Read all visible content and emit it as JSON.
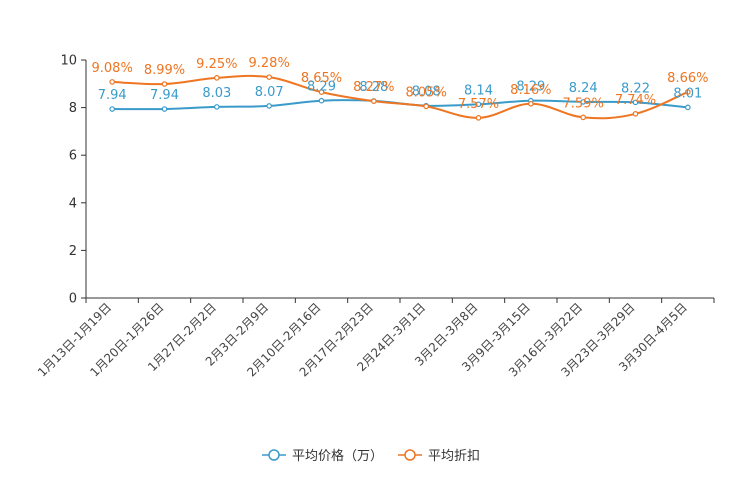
{
  "chart_data": {
    "type": "line",
    "categories": [
      "1月13日-1月19日",
      "1月20日-1月26日",
      "1月27日-2月2日",
      "2月3日-2月9日",
      "2月10日-2月16日",
      "2月17日-2月23日",
      "2月24日-3月1日",
      "3月2日-3月8日",
      "3月9日-3月15日",
      "3月16日-3月22日",
      "3月23日-3月29日",
      "3月30日-4月5日"
    ],
    "ylim": [
      0,
      10
    ],
    "yticks": [
      0,
      2,
      4,
      6,
      8,
      10
    ],
    "series": [
      {
        "name": "平均价格（万）",
        "color": "#3a9bcb",
        "values": [
          7.94,
          7.94,
          8.03,
          8.07,
          8.29,
          8.28,
          8.08,
          8.14,
          8.29,
          8.24,
          8.22,
          8.01
        ],
        "labels": [
          "7.94",
          "7.94",
          "8.03",
          "8.07",
          "8.29",
          "8.28",
          "8.08",
          "8.14",
          "8.29",
          "8.24",
          "8.22",
          "8.01"
        ]
      },
      {
        "name": "平均折扣",
        "color": "#ee7522",
        "values": [
          9.08,
          8.99,
          9.25,
          9.28,
          8.65,
          8.27,
          8.05,
          7.57,
          8.16,
          7.59,
          7.74,
          8.66
        ],
        "labels": [
          "9.08%",
          "8.99%",
          "9.25%",
          "9.28%",
          "8.65%",
          "8.27%",
          "8.05%",
          "7.57%",
          "8.16%",
          "7.59%",
          "7.74%",
          "8.66%"
        ]
      }
    ]
  }
}
